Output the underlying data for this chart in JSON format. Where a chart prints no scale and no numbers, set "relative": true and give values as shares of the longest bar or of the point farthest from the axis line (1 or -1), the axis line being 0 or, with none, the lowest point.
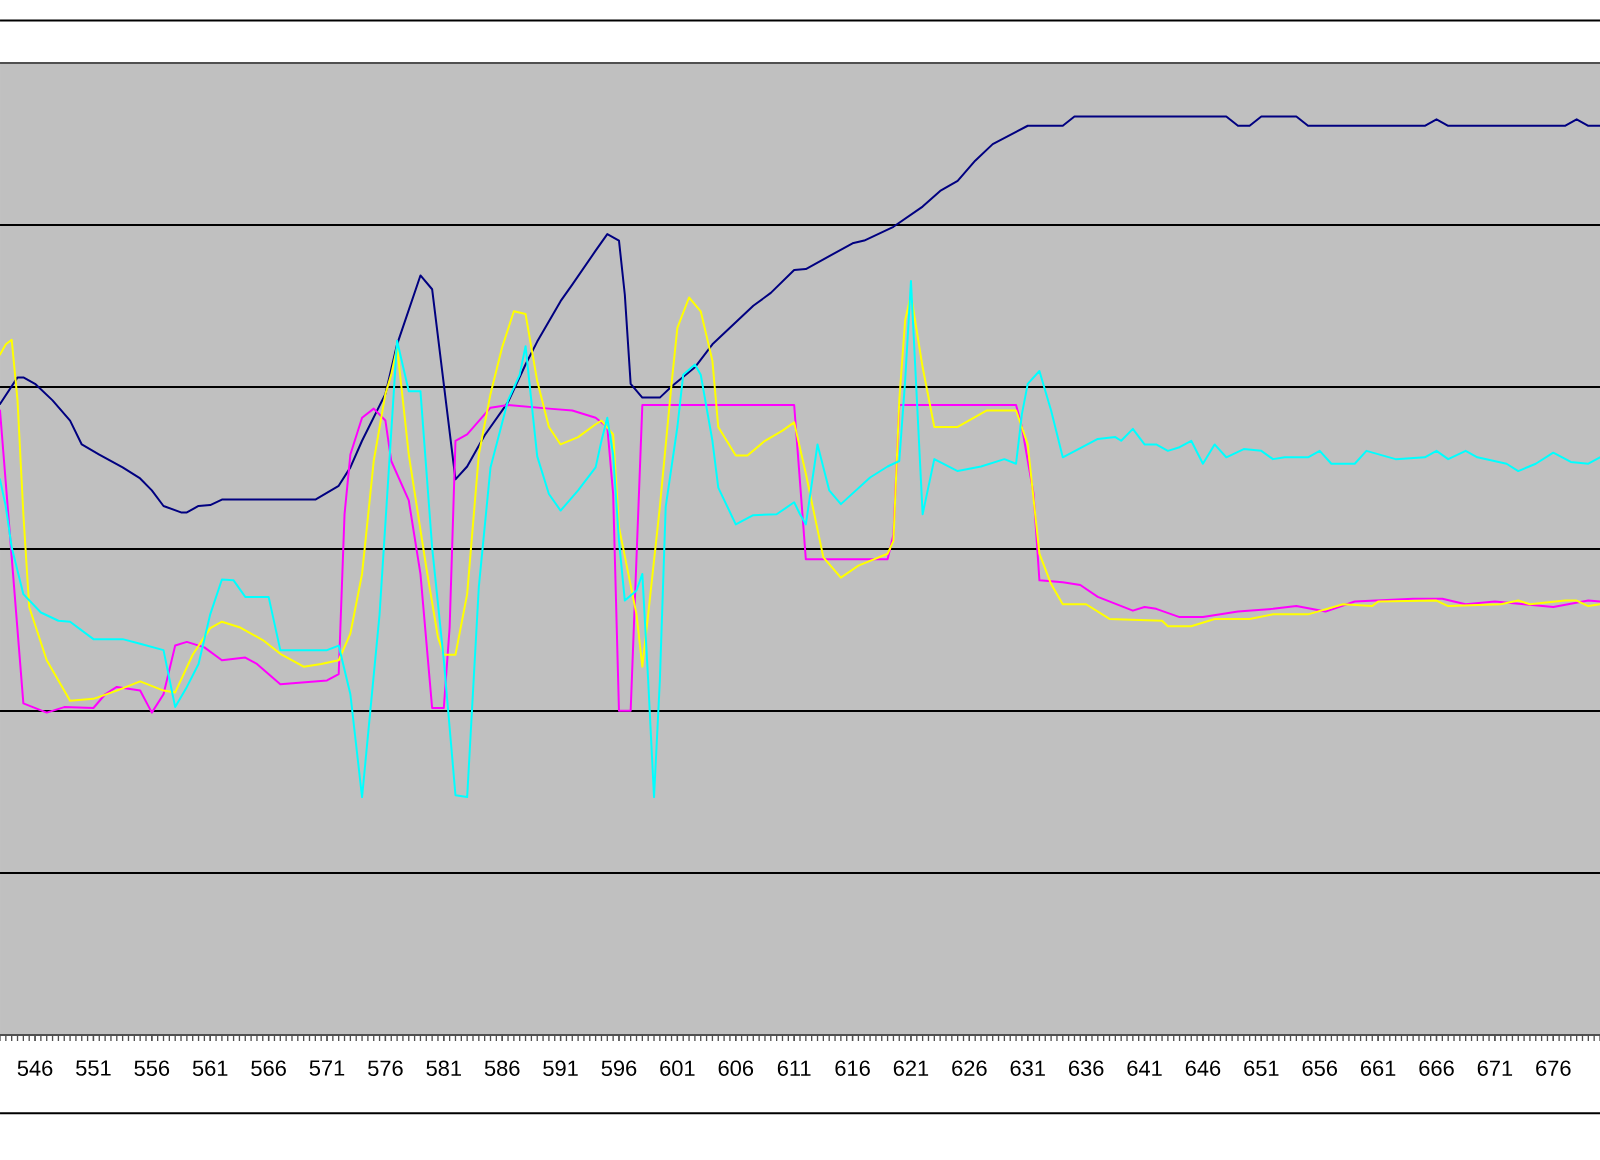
{
  "chart_data": {
    "type": "line",
    "relative": true,
    "grid": "y",
    "xlim": [
      543,
      680
    ],
    "xticks": [
      546,
      551,
      556,
      561,
      566,
      571,
      576,
      581,
      586,
      591,
      596,
      601,
      606,
      611,
      616,
      621,
      626,
      631,
      636,
      641,
      646,
      651,
      656,
      661,
      666,
      671,
      676
    ],
    "series": [
      {
        "color": "#000080",
        "x": [
          543,
          544.5,
          545,
          546,
          547.5,
          549,
          550,
          551.5,
          553.5,
          555,
          556,
          557,
          558.5,
          559,
          560,
          561,
          562,
          570,
          572,
          573,
          574,
          576,
          577,
          579,
          580,
          582,
          583,
          584.5,
          586.5,
          588,
          589,
          591,
          592,
          594,
          595,
          596,
          596.5,
          597,
          598,
          599.5,
          600.5,
          602.5,
          604,
          606,
          607.5,
          609,
          611,
          612,
          614,
          616,
          617,
          619.5,
          622,
          623.5,
          625,
          626.5,
          628,
          631,
          634,
          635,
          648,
          649,
          650,
          651,
          654,
          655,
          665,
          666,
          667,
          677,
          678,
          679,
          680
        ],
        "values": [
          0.687,
          0.716,
          0.716,
          0.709,
          0.691,
          0.669,
          0.643,
          0.632,
          0.618,
          0.606,
          0.593,
          0.576,
          0.569,
          0.569,
          0.576,
          0.577,
          0.583,
          0.583,
          0.598,
          0.618,
          0.647,
          0.698,
          0.752,
          0.827,
          0.812,
          0.605,
          0.619,
          0.653,
          0.689,
          0.73,
          0.755,
          0.799,
          0.817,
          0.854,
          0.872,
          0.865,
          0.806,
          0.709,
          0.694,
          0.694,
          0.706,
          0.727,
          0.752,
          0.776,
          0.794,
          0.808,
          0.833,
          0.834,
          0.848,
          0.862,
          0.865,
          0.88,
          0.902,
          0.919,
          0.93,
          0.952,
          0.97,
          0.99,
          0.99,
          1.0,
          1.0,
          0.99,
          0.99,
          1.0,
          1.0,
          0.99,
          0.99,
          0.997,
          0.99,
          0.99,
          0.997,
          0.99,
          0.99
        ]
      },
      {
        "color": "#ff00ff",
        "x": [
          543,
          545,
          547,
          548.5,
          551,
          552,
          553,
          555,
          556,
          557,
          558,
          559,
          560.5,
          562,
          564,
          565,
          567,
          571,
          572,
          572.5,
          573,
          574,
          575,
          576,
          576.5,
          578,
          579,
          580,
          581,
          581.5,
          582,
          583,
          585,
          586.5,
          590,
          592,
          594,
          595,
          595.5,
          596,
          597,
          598,
          611,
          612,
          619,
          619.5,
          620,
          630,
          630.5,
          631.5,
          632,
          634,
          635.5,
          637,
          640,
          641,
          642,
          644,
          646,
          649,
          652,
          654,
          656.5,
          659,
          664,
          666.5,
          668.5,
          671,
          673.5,
          676,
          679,
          680
        ],
        "values": [
          0.68,
          0.361,
          0.351,
          0.357,
          0.356,
          0.371,
          0.379,
          0.375,
          0.351,
          0.371,
          0.424,
          0.428,
          0.422,
          0.408,
          0.411,
          0.404,
          0.382,
          0.386,
          0.393,
          0.567,
          0.632,
          0.672,
          0.682,
          0.669,
          0.625,
          0.582,
          0.502,
          0.356,
          0.356,
          0.444,
          0.647,
          0.654,
          0.683,
          0.686,
          0.682,
          0.68,
          0.672,
          0.662,
          0.589,
          0.353,
          0.353,
          0.686,
          0.686,
          0.518,
          0.518,
          0.545,
          0.686,
          0.686,
          0.662,
          0.589,
          0.495,
          0.493,
          0.49,
          0.477,
          0.462,
          0.466,
          0.464,
          0.455,
          0.455,
          0.461,
          0.464,
          0.467,
          0.461,
          0.472,
          0.475,
          0.475,
          0.469,
          0.472,
          0.469,
          0.466,
          0.473,
          0.472
        ]
      },
      {
        "color": "#ffff00",
        "x": [
          543,
          543.5,
          544,
          544.5,
          545,
          545.5,
          547,
          549,
          551,
          553,
          555,
          557,
          558,
          559.5,
          561,
          562,
          563.5,
          565.5,
          567,
          569,
          570.5,
          572,
          573,
          574,
          575,
          576,
          576.5,
          577,
          578,
          579.5,
          580.5,
          581,
          582,
          583,
          584,
          585,
          586,
          587,
          588,
          589,
          590,
          591,
          592.5,
          594,
          594.5,
          595.5,
          596,
          597.5,
          598,
          598.5,
          599.5,
          600.5,
          601,
          602,
          603,
          604,
          604.5,
          606,
          607,
          608.5,
          610,
          611,
          612,
          613.5,
          615,
          616.5,
          619,
          619.5,
          620,
          620.5,
          621,
          622,
          623,
          625,
          627.5,
          630,
          631,
          632,
          633,
          634,
          636,
          638,
          642.5,
          643,
          645,
          647,
          650,
          652,
          655,
          658,
          660.5,
          661,
          666,
          667,
          671.5,
          673,
          674,
          677,
          678,
          679,
          680
        ],
        "values": [
          0.741,
          0.752,
          0.757,
          0.691,
          0.567,
          0.466,
          0.408,
          0.364,
          0.366,
          0.375,
          0.385,
          0.375,
          0.373,
          0.414,
          0.443,
          0.45,
          0.444,
          0.43,
          0.415,
          0.401,
          0.404,
          0.408,
          0.437,
          0.502,
          0.625,
          0.698,
          0.719,
          0.749,
          0.632,
          0.509,
          0.433,
          0.414,
          0.414,
          0.48,
          0.632,
          0.698,
          0.749,
          0.788,
          0.785,
          0.712,
          0.662,
          0.643,
          0.651,
          0.665,
          0.669,
          0.654,
          0.553,
          0.458,
          0.401,
          0.458,
          0.575,
          0.709,
          0.77,
          0.803,
          0.788,
          0.734,
          0.662,
          0.631,
          0.631,
          0.647,
          0.658,
          0.667,
          0.611,
          0.52,
          0.498,
          0.511,
          0.524,
          0.538,
          0.691,
          0.778,
          0.806,
          0.727,
          0.662,
          0.662,
          0.68,
          0.68,
          0.643,
          0.524,
          0.491,
          0.469,
          0.469,
          0.453,
          0.451,
          0.445,
          0.445,
          0.453,
          0.453,
          0.458,
          0.458,
          0.469,
          0.467,
          0.472,
          0.473,
          0.467,
          0.469,
          0.473,
          0.469,
          0.473,
          0.473,
          0.467,
          0.469
        ]
      },
      {
        "color": "#00ffff",
        "x": [
          543,
          543.5,
          544,
          545,
          546.5,
          548,
          549,
          551,
          553.5,
          555,
          557,
          558,
          559,
          560,
          561,
          562,
          563,
          564,
          566,
          567,
          571,
          572,
          573,
          574,
          575.5,
          577,
          578,
          579,
          580,
          581,
          582,
          583,
          584,
          585,
          586.5,
          587.5,
          588,
          589,
          590,
          591,
          592.5,
          594,
          594.5,
          595,
          595.5,
          596,
          596.5,
          597.5,
          598,
          598.5,
          599,
          599.5,
          600,
          601,
          601.5,
          602.5,
          603,
          604,
          604.5,
          606,
          607.5,
          609.5,
          611,
          611.5,
          612,
          613,
          614,
          615,
          617.5,
          619,
          620,
          620.5,
          621,
          622,
          623,
          625,
          627,
          629,
          630,
          630.5,
          631,
          632,
          633,
          634,
          637,
          638.5,
          639,
          640,
          641,
          642,
          643,
          644,
          645,
          646,
          647,
          648,
          649.5,
          651,
          652,
          653,
          655,
          656,
          657,
          659,
          660,
          662.5,
          665,
          666,
          667,
          668.5,
          669.5,
          672,
          673,
          674.5,
          676,
          677.5,
          679,
          680
        ],
        "values": [
          0.605,
          0.575,
          0.531,
          0.48,
          0.46,
          0.451,
          0.45,
          0.431,
          0.431,
          0.426,
          0.419,
          0.357,
          0.379,
          0.404,
          0.458,
          0.496,
          0.495,
          0.477,
          0.477,
          0.419,
          0.419,
          0.424,
          0.371,
          0.259,
          0.458,
          0.756,
          0.701,
          0.701,
          0.531,
          0.408,
          0.261,
          0.259,
          0.488,
          0.618,
          0.691,
          0.719,
          0.75,
          0.63,
          0.589,
          0.571,
          0.593,
          0.618,
          0.647,
          0.672,
          0.632,
          0.538,
          0.473,
          0.484,
          0.502,
          0.386,
          0.259,
          0.386,
          0.575,
          0.662,
          0.719,
          0.73,
          0.719,
          0.647,
          0.596,
          0.556,
          0.566,
          0.567,
          0.58,
          0.567,
          0.556,
          0.643,
          0.593,
          0.578,
          0.607,
          0.619,
          0.625,
          0.712,
          0.821,
          0.567,
          0.627,
          0.614,
          0.619,
          0.627,
          0.622,
          0.676,
          0.709,
          0.723,
          0.68,
          0.629,
          0.649,
          0.651,
          0.647,
          0.66,
          0.643,
          0.643,
          0.636,
          0.64,
          0.647,
          0.622,
          0.643,
          0.629,
          0.638,
          0.636,
          0.627,
          0.629,
          0.629,
          0.636,
          0.622,
          0.622,
          0.636,
          0.627,
          0.629,
          0.636,
          0.627,
          0.636,
          0.629,
          0.622,
          0.614,
          0.622,
          0.634,
          0.624,
          0.622,
          0.629
        ]
      }
    ]
  }
}
